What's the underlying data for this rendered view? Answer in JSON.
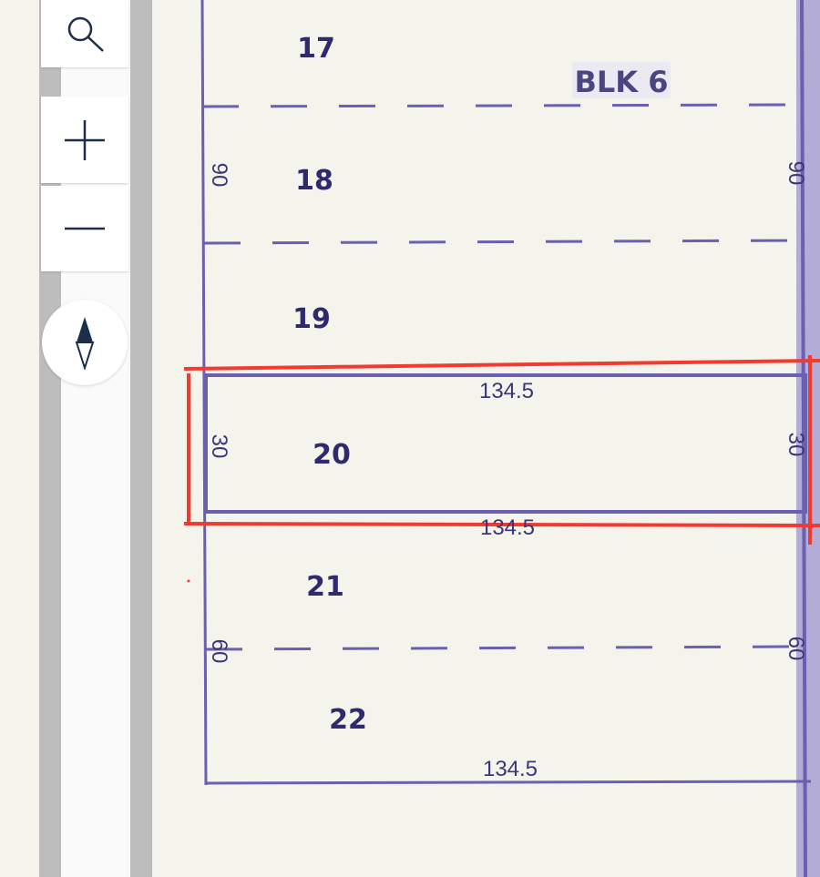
{
  "map": {
    "block_label": "BLK 6",
    "lots": [
      {
        "number": "17"
      },
      {
        "number": "18"
      },
      {
        "number": "19"
      },
      {
        "number": "20",
        "highlighted": true
      },
      {
        "number": "21"
      },
      {
        "number": "22"
      }
    ],
    "dimensions": {
      "left_upper": "90",
      "right_upper": "90",
      "lot20_left": "30",
      "lot20_right": "30",
      "lot20_top": "134.5",
      "lot20_bottom": "134.5",
      "left_lower": "60",
      "right_lower": "60",
      "bottom": "134.5"
    },
    "colors": {
      "background": "#f4f3ec",
      "lot_line": "#6a5fb0",
      "highlight": "#f23a2e",
      "road": "#bdbdbd"
    }
  },
  "controls": {
    "search_icon": "search-icon",
    "zoom_in_icon": "plus-icon",
    "zoom_out_icon": "minus-icon",
    "compass_icon": "compass-icon"
  }
}
